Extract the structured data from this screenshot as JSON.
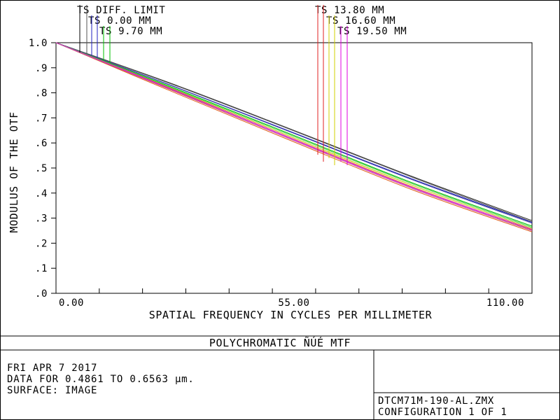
{
  "chart_data": {
    "type": "line",
    "title": "POLYCHROMATIC ÑÚÉ  MTF",
    "xlabel": "SPATIAL FREQUENCY IN CYCLES PER MILLIMETER",
    "ylabel": "MODULUS OF THE OTF",
    "xlim": [
      0,
      110
    ],
    "ylim": [
      0,
      1.0
    ],
    "x_ticks": [
      "0.00",
      "55.00",
      "110.00"
    ],
    "y_ticks": [
      "1.0",
      ".9",
      ".8",
      ".7",
      ".6",
      ".5",
      ".4",
      ".3",
      ".2",
      ".1",
      ".0"
    ],
    "grid": false,
    "legend": [
      {
        "label": "TS DIFF. LIMIT",
        "color": "#000000"
      },
      {
        "label": "TS 0.00 MM",
        "color": "#2020c0"
      },
      {
        "label": "TS 9.70 MM",
        "color": "#00c000"
      },
      {
        "label": "TS 13.80 MM",
        "color": "#e02020"
      },
      {
        "label": "TS 16.60 MM",
        "color": "#d0d000"
      },
      {
        "label": "TS 19.50 MM",
        "color": "#e000e0"
      }
    ],
    "series": [
      {
        "name": "DIFF. LIMIT T",
        "color": "#333333",
        "x": [
          0,
          27.5,
          55,
          82.5,
          110
        ],
        "y": [
          1.0,
          0.832,
          0.65,
          0.465,
          0.29
        ]
      },
      {
        "name": "DIFF. LIMIT S",
        "color": "#555555",
        "x": [
          0,
          27.5,
          55,
          82.5,
          110
        ],
        "y": [
          1.0,
          0.83,
          0.648,
          0.462,
          0.285
        ]
      },
      {
        "name": "0.00 MM T",
        "color": "#2020c0",
        "x": [
          0,
          27.5,
          55,
          82.5,
          110
        ],
        "y": [
          1.0,
          0.824,
          0.64,
          0.455,
          0.283
        ]
      },
      {
        "name": "0.00 MM S",
        "color": "#4040a0",
        "x": [
          0,
          27.5,
          55,
          82.5,
          110
        ],
        "y": [
          1.0,
          0.823,
          0.638,
          0.452,
          0.28
        ]
      },
      {
        "name": "9.70 MM T",
        "color": "#00c000",
        "x": [
          0,
          27.5,
          55,
          82.5,
          110
        ],
        "y": [
          1.0,
          0.818,
          0.63,
          0.44,
          0.268
        ]
      },
      {
        "name": "9.70 MM S",
        "color": "#40d040",
        "x": [
          0,
          27.5,
          55,
          82.5,
          110
        ],
        "y": [
          1.0,
          0.815,
          0.626,
          0.436,
          0.263
        ]
      },
      {
        "name": "13.80 MM T",
        "color": "#e02020",
        "x": [
          0,
          27.5,
          55,
          82.5,
          110
        ],
        "y": [
          1.0,
          0.805,
          0.61,
          0.418,
          0.25
        ]
      },
      {
        "name": "13.80 MM S",
        "color": "#e06020",
        "x": [
          0,
          27.5,
          55,
          82.5,
          110
        ],
        "y": [
          1.0,
          0.8,
          0.604,
          0.412,
          0.245
        ]
      },
      {
        "name": "16.60 MM T",
        "color": "#c0c000",
        "x": [
          0,
          27.5,
          55,
          82.5,
          110
        ],
        "y": [
          1.0,
          0.812,
          0.62,
          0.43,
          0.258
        ]
      },
      {
        "name": "16.60 MM S",
        "color": "#e0a000",
        "x": [
          0,
          27.5,
          55,
          82.5,
          110
        ],
        "y": [
          1.0,
          0.808,
          0.615,
          0.424,
          0.253
        ]
      },
      {
        "name": "19.50 MM T",
        "color": "#e000e0",
        "x": [
          0,
          27.5,
          55,
          82.5,
          110
        ],
        "y": [
          1.0,
          0.81,
          0.614,
          0.422,
          0.255
        ]
      },
      {
        "name": "19.50 MM S",
        "color": "#c040c0",
        "x": [
          0,
          27.5,
          55,
          82.5,
          110
        ],
        "y": [
          1.0,
          0.806,
          0.61,
          0.418,
          0.25
        ]
      }
    ]
  },
  "footer": {
    "date": "FRI APR 7 2017",
    "data_range": "DATA FOR 0.4861 TO 0.6563 µm.",
    "surface": "SURFACE: IMAGE",
    "file_name": "DTCM71M-190-AL.ZMX",
    "configuration": "CONFIGURATION 1 OF 1"
  }
}
